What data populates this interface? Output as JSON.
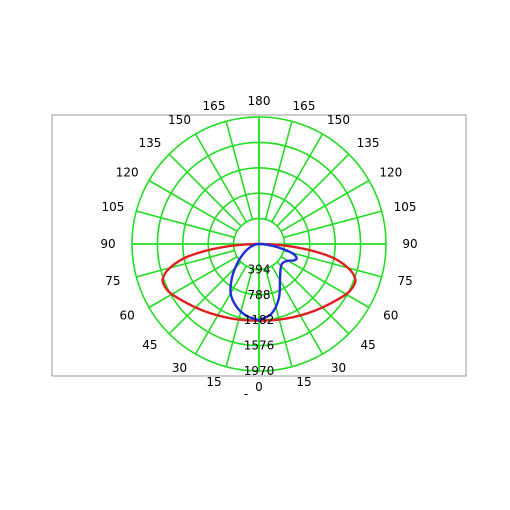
{
  "chart_data": {
    "type": "polar",
    "title": "",
    "angle_labels_left": [
      "0",
      "15",
      "30",
      "45",
      "60",
      "75",
      "90",
      "105",
      "120",
      "135",
      "150",
      "165",
      "180"
    ],
    "angle_labels_right": [
      "15",
      "30",
      "45",
      "60",
      "75",
      "90",
      "105",
      "120",
      "135",
      "150",
      "165"
    ],
    "angle_step_deg": 15,
    "radial_ticks": [
      394,
      788,
      1182,
      1576,
      1970
    ],
    "radial_max": 1970,
    "grid": true,
    "grid_color": "#22dd22",
    "footer_text": "-",
    "series": [
      {
        "color": "#e02020",
        "gamma_deg": [
          0,
          10,
          20,
          30,
          40,
          50,
          60,
          65,
          70,
          75,
          80,
          85,
          90
        ],
        "values": [
          0,
          0,
          0,
          0,
          0,
          0,
          0,
          0,
          0,
          0,
          0,
          0,
          0
        ]
      },
      {
        "color": "#1f2ed8",
        "gamma_deg": [
          0,
          10,
          20,
          30,
          40,
          50,
          60,
          65,
          70,
          75,
          80,
          85,
          90
        ],
        "values": [
          0,
          0,
          0,
          0,
          0,
          0,
          0,
          0,
          0,
          0,
          0,
          0,
          0
        ]
      }
    ],
    "curve_red": {
      "color": "#e02020",
      "points": [
        [
          0,
          1190
        ],
        [
          10,
          1200
        ],
        [
          20,
          1230
        ],
        [
          30,
          1280
        ],
        [
          40,
          1350
        ],
        [
          50,
          1440
        ],
        [
          60,
          1560
        ],
        [
          65,
          1600
        ],
        [
          70,
          1590
        ],
        [
          75,
          1430
        ],
        [
          80,
          1120
        ],
        [
          85,
          580
        ],
        [
          90,
          0
        ]
      ],
      "symmetric": true
    },
    "curve_blue": {
      "color": "#1f2ed8",
      "points_left": [
        [
          0,
          1180
        ],
        [
          10,
          1130
        ],
        [
          20,
          1030
        ],
        [
          30,
          880
        ],
        [
          40,
          640
        ],
        [
          50,
          420
        ],
        [
          60,
          260
        ],
        [
          70,
          150
        ],
        [
          80,
          60
        ],
        [
          90,
          0
        ]
      ],
      "points_right": [
        [
          0,
          1180
        ],
        [
          10,
          1100
        ],
        [
          20,
          900
        ],
        [
          30,
          650
        ],
        [
          40,
          520
        ],
        [
          50,
          470
        ],
        [
          60,
          520
        ],
        [
          65,
          600
        ],
        [
          70,
          620
        ],
        [
          75,
          520
        ],
        [
          80,
          300
        ],
        [
          85,
          120
        ],
        [
          90,
          0
        ]
      ]
    }
  }
}
